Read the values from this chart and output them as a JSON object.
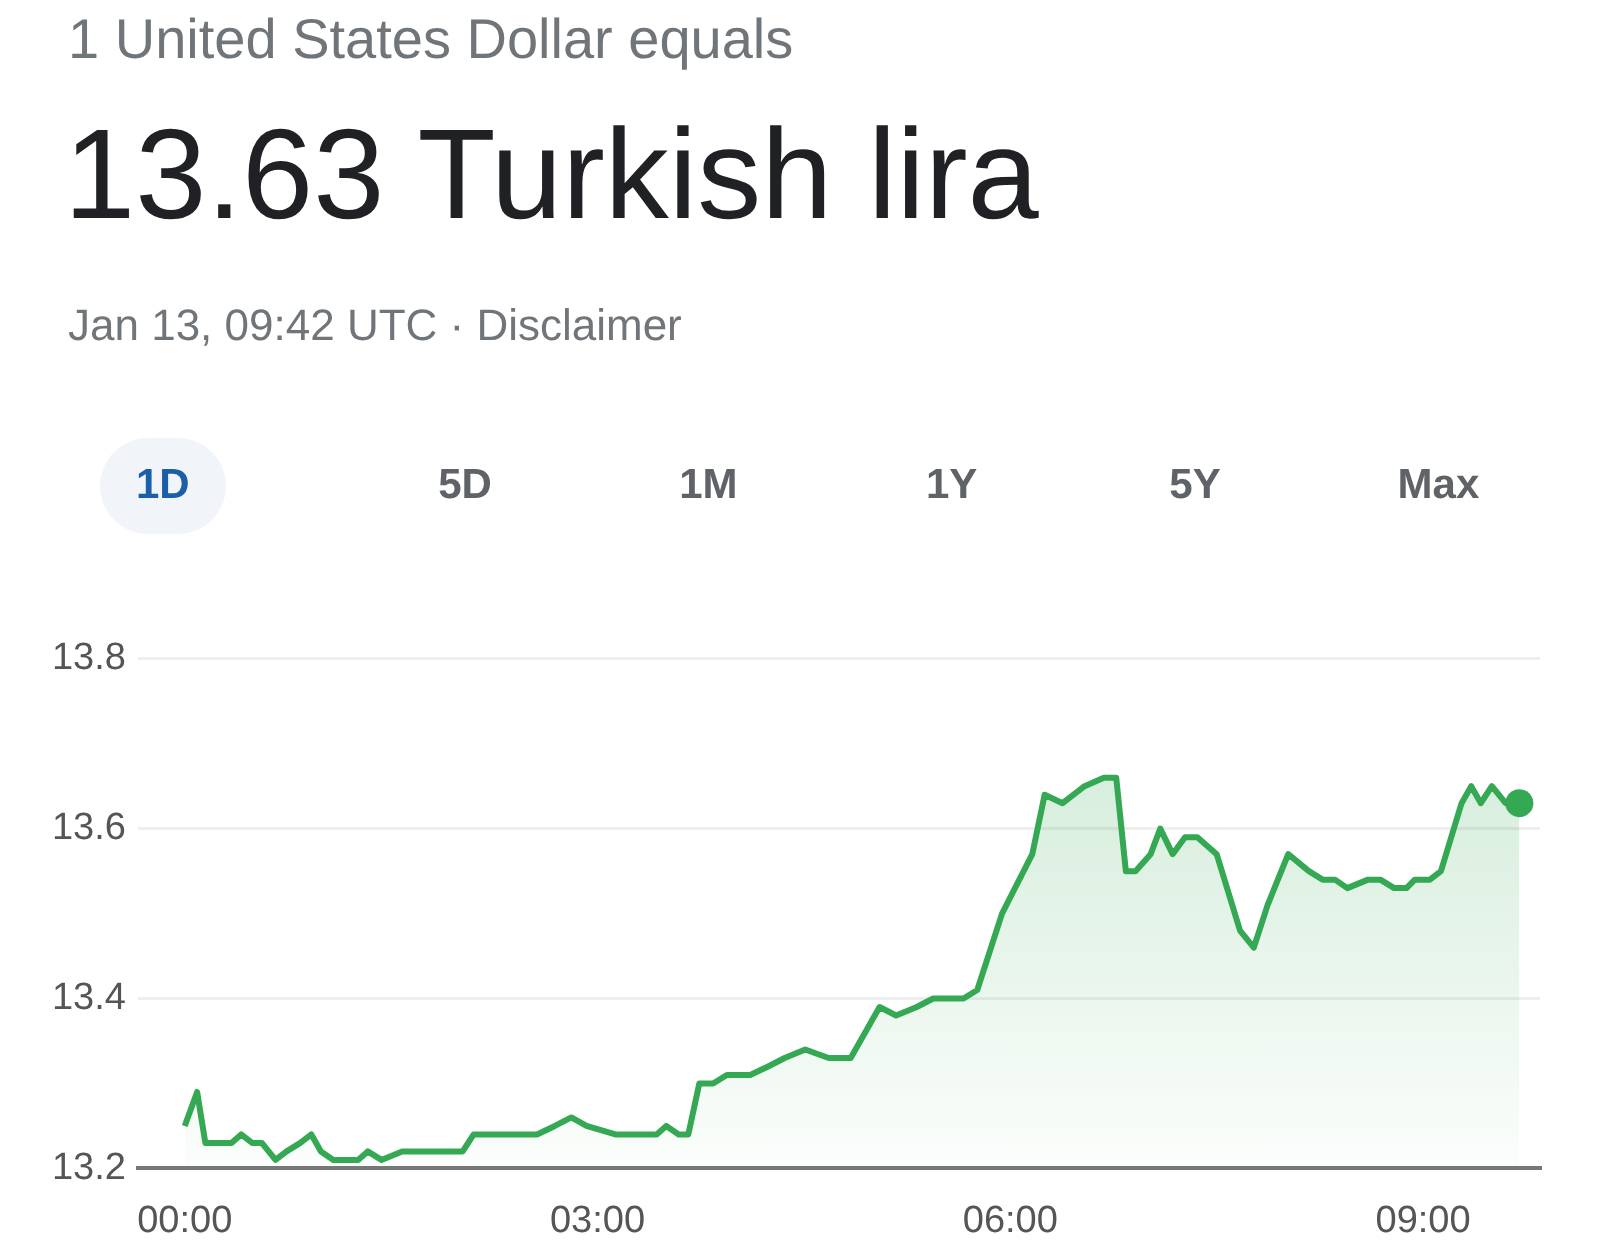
{
  "chart_data": {
    "type": "area",
    "subtitle": "1 United States Dollar equals",
    "title": "13.63 Turkish lira",
    "annotations": [
      "Jan 13, 09:42 UTC · Disclaimer",
      "1D",
      "5D",
      "1M",
      "1Y",
      "5Y",
      "Max"
    ],
    "x": [
      0,
      0.09,
      0.15,
      0.34,
      0.41,
      0.49,
      0.56,
      0.66,
      0.74,
      0.84,
      0.92,
      0.99,
      1.08,
      1.18,
      1.26,
      1.33,
      1.43,
      1.58,
      1.77,
      1.96,
      2.02,
      2.1,
      2.26,
      2.56,
      2.69,
      2.81,
      2.92,
      3.13,
      3.35,
      3.43,
      3.5,
      3.59,
      3.66,
      3.74,
      3.84,
      3.94,
      4.02,
      4.11,
      4.24,
      4.36,
      4.51,
      4.68,
      4.84,
      5.05,
      5.17,
      5.32,
      5.44,
      5.51,
      5.66,
      5.76,
      5.94,
      6.16,
      6.25,
      6.38,
      6.54,
      6.68,
      6.77,
      6.84,
      6.91,
      7.02,
      7.09,
      7.18,
      7.27,
      7.36,
      7.5,
      7.67,
      7.77,
      7.87,
      8.02,
      8.17,
      8.27,
      8.36,
      8.45,
      8.6,
      8.69,
      8.79,
      8.88,
      8.94,
      9.05,
      9.13,
      9.28,
      9.35,
      9.42,
      9.5,
      9.6,
      9.7
    ],
    "series": [
      {
        "color": "#34a853",
        "values": [
          13.25,
          13.29,
          13.23,
          13.23,
          13.24,
          13.23,
          13.23,
          13.21,
          13.22,
          13.23,
          13.24,
          13.22,
          13.21,
          13.21,
          13.21,
          13.22,
          13.21,
          13.22,
          13.22,
          13.22,
          13.22,
          13.24,
          13.24,
          13.24,
          13.25,
          13.26,
          13.25,
          13.24,
          13.24,
          13.24,
          13.25,
          13.24,
          13.24,
          13.3,
          13.3,
          13.31,
          13.31,
          13.31,
          13.32,
          13.33,
          13.34,
          13.33,
          13.33,
          13.39,
          13.38,
          13.39,
          13.4,
          13.4,
          13.4,
          13.41,
          13.5,
          13.57,
          13.64,
          13.63,
          13.65,
          13.66,
          13.66,
          13.55,
          13.55,
          13.57,
          13.6,
          13.57,
          13.59,
          13.59,
          13.57,
          13.48,
          13.46,
          13.51,
          13.57,
          13.55,
          13.54,
          13.54,
          13.53,
          13.54,
          13.54,
          13.53,
          13.53,
          13.54,
          13.54,
          13.55,
          13.63,
          13.65,
          13.63,
          13.65,
          13.63,
          13.63
        ]
      }
    ],
    "xlim": [
      -0.34,
      9.85
    ],
    "xticks": [
      {
        "value": 0,
        "label": "00:00"
      },
      {
        "value": 3,
        "label": "03:00"
      },
      {
        "value": 6,
        "label": "06:00"
      },
      {
        "value": 9,
        "label": "09:00"
      }
    ],
    "ylim": [
      13.2,
      13.8
    ],
    "yticks": [
      {
        "value": 13.2,
        "label": "13.2"
      },
      {
        "value": 13.4,
        "label": "13.4"
      },
      {
        "value": 13.6,
        "label": "13.6"
      },
      {
        "value": 13.8,
        "label": "13.8"
      }
    ],
    "grid": "y",
    "legend": false
  }
}
